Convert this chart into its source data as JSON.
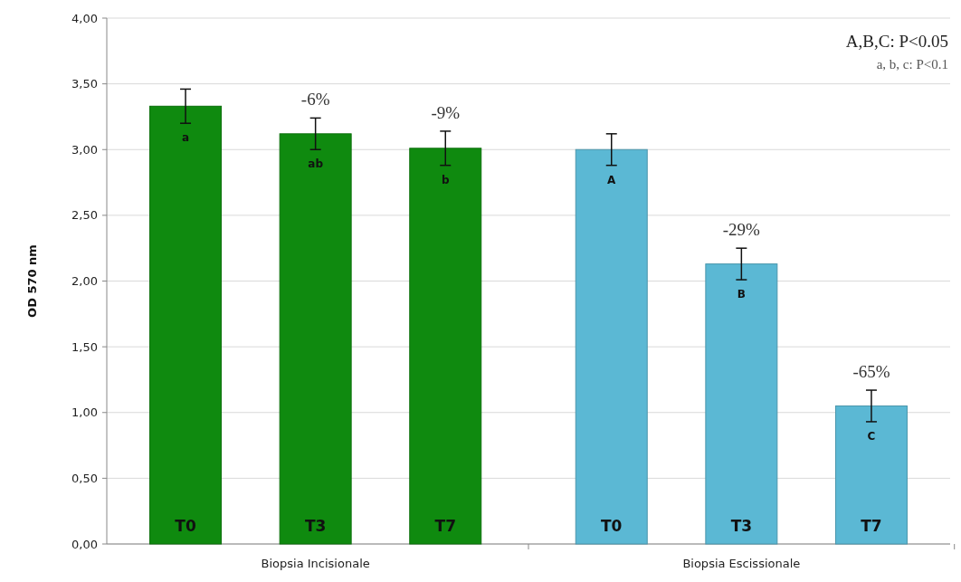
{
  "chart_data": {
    "type": "bar",
    "categories": [
      "Biopsia Incisionale",
      "Biopsia Escissionale"
    ],
    "series": [
      {
        "name": "T0",
        "colors": [
          "#0f8a0f",
          "#5bb8d4"
        ],
        "values": [
          3.33,
          3.0
        ],
        "errors": [
          0.13,
          0.12
        ]
      },
      {
        "name": "T3",
        "colors": [
          "#0f8a0f",
          "#5bb8d4"
        ],
        "values": [
          3.12,
          2.13
        ],
        "errors": [
          0.12,
          0.12
        ]
      },
      {
        "name": "T7",
        "colors": [
          "#0f8a0f",
          "#5bb8d4"
        ],
        "values": [
          3.01,
          1.05
        ],
        "errors": [
          0.13,
          0.12
        ]
      }
    ],
    "ylabel": "OD 570 nm",
    "ylim": [
      0,
      4
    ],
    "yticks": [
      {
        "value": 0,
        "label": "0,00"
      },
      {
        "value": 0.5,
        "label": "0,50"
      },
      {
        "value": 1,
        "label": "1,00"
      },
      {
        "value": 1.5,
        "label": "1,50"
      },
      {
        "value": 2,
        "label": "2,00"
      },
      {
        "value": 2.5,
        "label": "2,50"
      },
      {
        "value": 3,
        "label": "3,00"
      },
      {
        "value": 3.5,
        "label": "3,50"
      },
      {
        "value": 4,
        "label": "4,00"
      }
    ],
    "grid": "y",
    "legend": false,
    "annotations": [
      "A,B,C: P<0.05",
      "a, b, c: P<0.1",
      "a",
      "ab",
      "b",
      "A",
      "B",
      "C",
      "-6%",
      "-9%",
      "-29%",
      "-65%"
    ]
  }
}
